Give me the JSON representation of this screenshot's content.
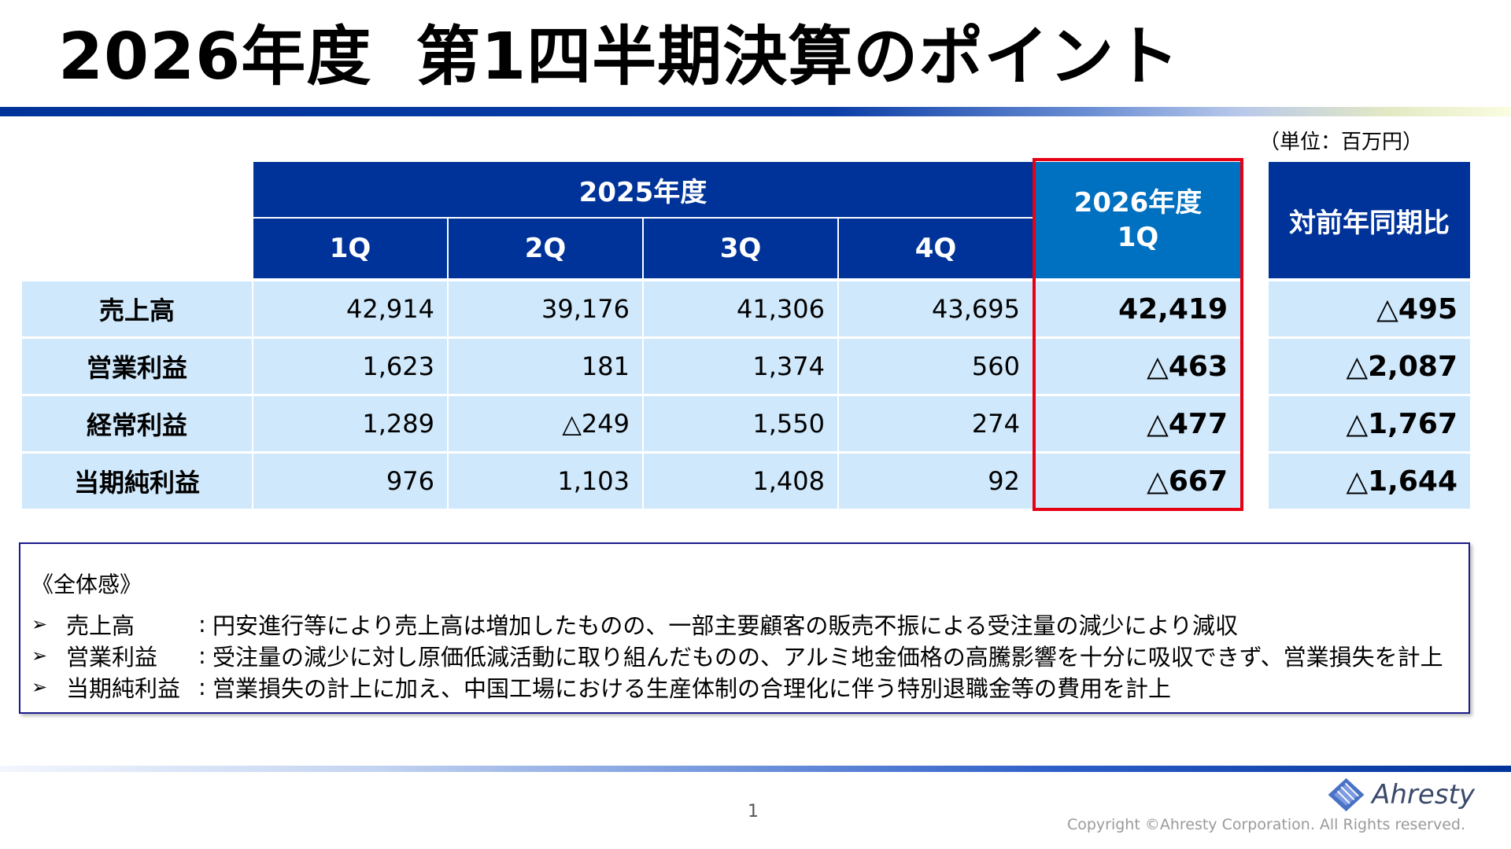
{
  "page": {
    "title_year": "2026年度",
    "title_main": "第1四半期決算のポイント",
    "unit": "（単位：百万円）",
    "page_number": "1",
    "logo_text": "Ahresty",
    "copyright": "Copyright ©Ahresty Corporation. All Rights reserved."
  },
  "table": {
    "prev_year_header": "2025年度",
    "quarters": [
      "1Q",
      "2Q",
      "3Q",
      "4Q"
    ],
    "current_header_line1": "2026年度",
    "current_header_line2": "1Q",
    "yoy_header": "対前年同期比",
    "rows": [
      {
        "label": "売上高",
        "q1": "42,914",
        "q2": "39,176",
        "q3": "41,306",
        "q4": "43,695",
        "current": "42,419",
        "yoy": "△495"
      },
      {
        "label": "営業利益",
        "q1": "1,623",
        "q2": "181",
        "q3": "1,374",
        "q4": "560",
        "current": "△463",
        "yoy": "△2,087"
      },
      {
        "label": "経常利益",
        "q1": "1,289",
        "q2": "△249",
        "q3": "1,550",
        "q4": "274",
        "current": "△477",
        "yoy": "△1,767"
      },
      {
        "label": "当期純利益",
        "q1": "976",
        "q2": "1,103",
        "q3": "1,408",
        "q4": "92",
        "current": "△667",
        "yoy": "△1,644"
      }
    ],
    "highlight_color": "#e60012",
    "header_color": "#003399",
    "current_header_color": "#0070c0",
    "row_color": "#cfe8fb"
  },
  "summary": {
    "title": "《全体感》",
    "bullet_icon": "arrow-bullet",
    "items": [
      {
        "label": "売上高",
        "text": "円安進行等により売上高は増加したものの、一部主要顧客の販売不振による受注量の減少により減収"
      },
      {
        "label": "営業利益",
        "text": "受注量の減少に対し原価低減活動に取り組んだものの、アルミ地金価格の高騰影響を十分に吸収できず、営業損失を計上"
      },
      {
        "label": "当期純利益",
        "text": "営業損失の計上に加え、中国工場における生産体制の合理化に伴う特別退職金等の費用を計上"
      }
    ]
  }
}
